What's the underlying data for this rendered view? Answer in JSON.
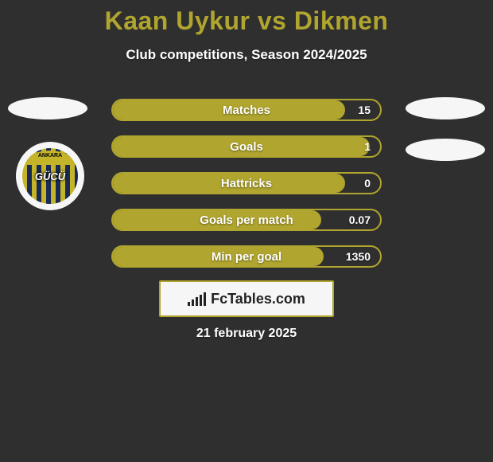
{
  "background_color": "#2f2f2f",
  "title": {
    "text": "Kaan Uykur vs Dikmen",
    "color": "#b0a52e",
    "fontsize": 32
  },
  "subtitle": {
    "text": "Club competitions, Season 2024/2025",
    "color": "#ffffff",
    "fontsize": 17
  },
  "player_oval_color": "#f6f6f6",
  "club_badge": {
    "outer_bg": "#f6f6f6",
    "stripe_a": "#c4b42a",
    "stripe_b": "#1a2a52",
    "ring_text": "ANKARA",
    "center_text": "GÜCÜ"
  },
  "stats": {
    "track_color": "#2f2f2f",
    "border_color": "#b0a52e",
    "fill_color": "#b0a52e",
    "label_color": "#ffffff",
    "value_color": "#ffffff",
    "rows": [
      {
        "label": "Matches",
        "value": "15",
        "fill_pct": 87
      },
      {
        "label": "Goals",
        "value": "1",
        "fill_pct": 96
      },
      {
        "label": "Hattricks",
        "value": "0",
        "fill_pct": 87
      },
      {
        "label": "Goals per match",
        "value": "0.07",
        "fill_pct": 78
      },
      {
        "label": "Min per goal",
        "value": "1350",
        "fill_pct": 79
      }
    ]
  },
  "brand": {
    "box_bg": "#f6f6f6",
    "box_border": "#b0a52e",
    "text": "FcTables.com",
    "bar_heights": [
      5,
      8,
      11,
      14,
      17
    ]
  },
  "date": {
    "text": "21 february 2025",
    "color": "#ffffff"
  }
}
